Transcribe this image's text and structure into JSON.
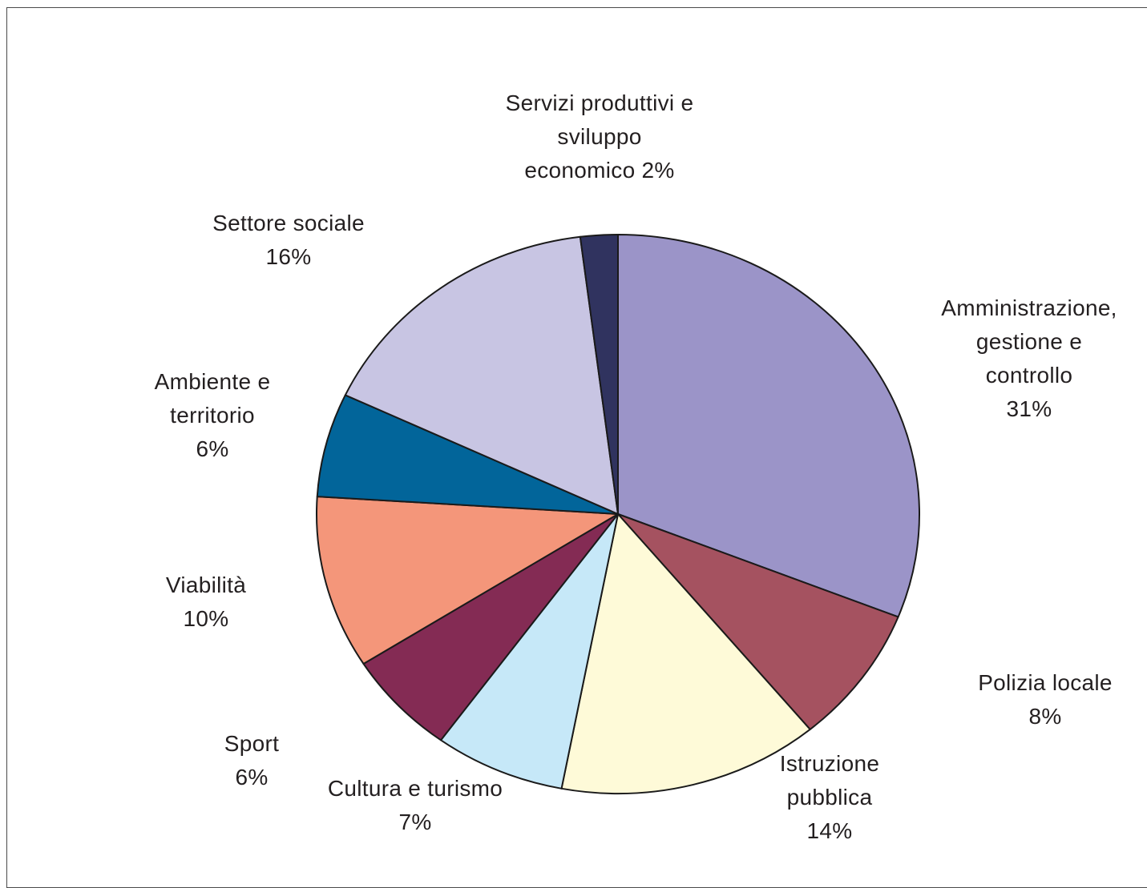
{
  "chart_data": {
    "type": "pie",
    "title": "",
    "legend": "none",
    "slices": [
      {
        "label": [
          "Amministrazione,",
          "gestione e",
          "controllo",
          "31%"
        ],
        "value": 31,
        "color": "#9b94c8"
      },
      {
        "label": [
          "Polizia locale",
          "8%"
        ],
        "value": 8,
        "color": "#a55260"
      },
      {
        "label": [
          "Istruzione",
          "pubblica",
          "14%"
        ],
        "value": 14,
        "color": "#fefad8"
      },
      {
        "label": [
          "Cultura e turismo",
          "7%"
        ],
        "value": 7,
        "color": "#c6e8f8"
      },
      {
        "label": [
          "Sport",
          "6%"
        ],
        "value": 6,
        "color": "#842b54"
      },
      {
        "label": [
          "Viabilità",
          "10%"
        ],
        "value": 10,
        "color": "#f4967a"
      },
      {
        "label": [
          "Ambiente e",
          "territorio",
          "6%"
        ],
        "value": 6,
        "color": "#02659a"
      },
      {
        "label": [
          "Settore sociale",
          "16%"
        ],
        "value": 16,
        "color": "#c8c5e3"
      },
      {
        "label": [
          "Servizi produttivi e",
          "sviluppo",
          "economico 2%"
        ],
        "value": 2,
        "color": "#30335f"
      }
    ]
  }
}
